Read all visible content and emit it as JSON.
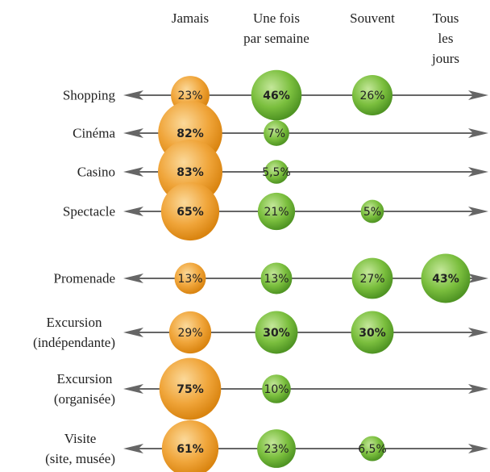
{
  "chart_data": {
    "type": "bubble",
    "columns": [
      "Jamais",
      "Une fois\npar semaine",
      "Souvent",
      "Tous\nles jours"
    ],
    "column_colors": [
      "orange",
      "green",
      "green",
      "green"
    ],
    "rows": [
      {
        "name": "Shopping",
        "values": [
          23,
          46,
          26,
          null
        ],
        "value_labels": [
          "23%",
          "46%",
          "26%",
          null
        ]
      },
      {
        "name": "Cinéma",
        "values": [
          82,
          7,
          null,
          null
        ],
        "value_labels": [
          "82%",
          "7%",
          null,
          null
        ]
      },
      {
        "name": "Casino",
        "values": [
          83,
          5.5,
          null,
          null
        ],
        "value_labels": [
          "83%",
          "5,5%",
          null,
          null
        ]
      },
      {
        "name": "Spectacle",
        "values": [
          65,
          21,
          5,
          null
        ],
        "value_labels": [
          "65%",
          "21%",
          "5%",
          null
        ]
      },
      {
        "name": "Promenade",
        "values": [
          13,
          13,
          27,
          43
        ],
        "value_labels": [
          "13%",
          "13%",
          "27%",
          "43%"
        ]
      },
      {
        "name": "Excursion\n(indépendante)",
        "values": [
          29,
          30,
          30,
          null
        ],
        "value_labels": [
          "29%",
          "30%",
          "30%",
          null
        ]
      },
      {
        "name": "Excursion\n(organisée)",
        "values": [
          75,
          10,
          null,
          null
        ],
        "value_labels": [
          "75%",
          "10%",
          null,
          null
        ]
      },
      {
        "name": "Visite\n(site, musée)",
        "values": [
          61,
          23,
          6.5,
          null
        ],
        "value_labels": [
          "61%",
          "23%",
          "6,5%",
          null
        ]
      }
    ]
  }
}
